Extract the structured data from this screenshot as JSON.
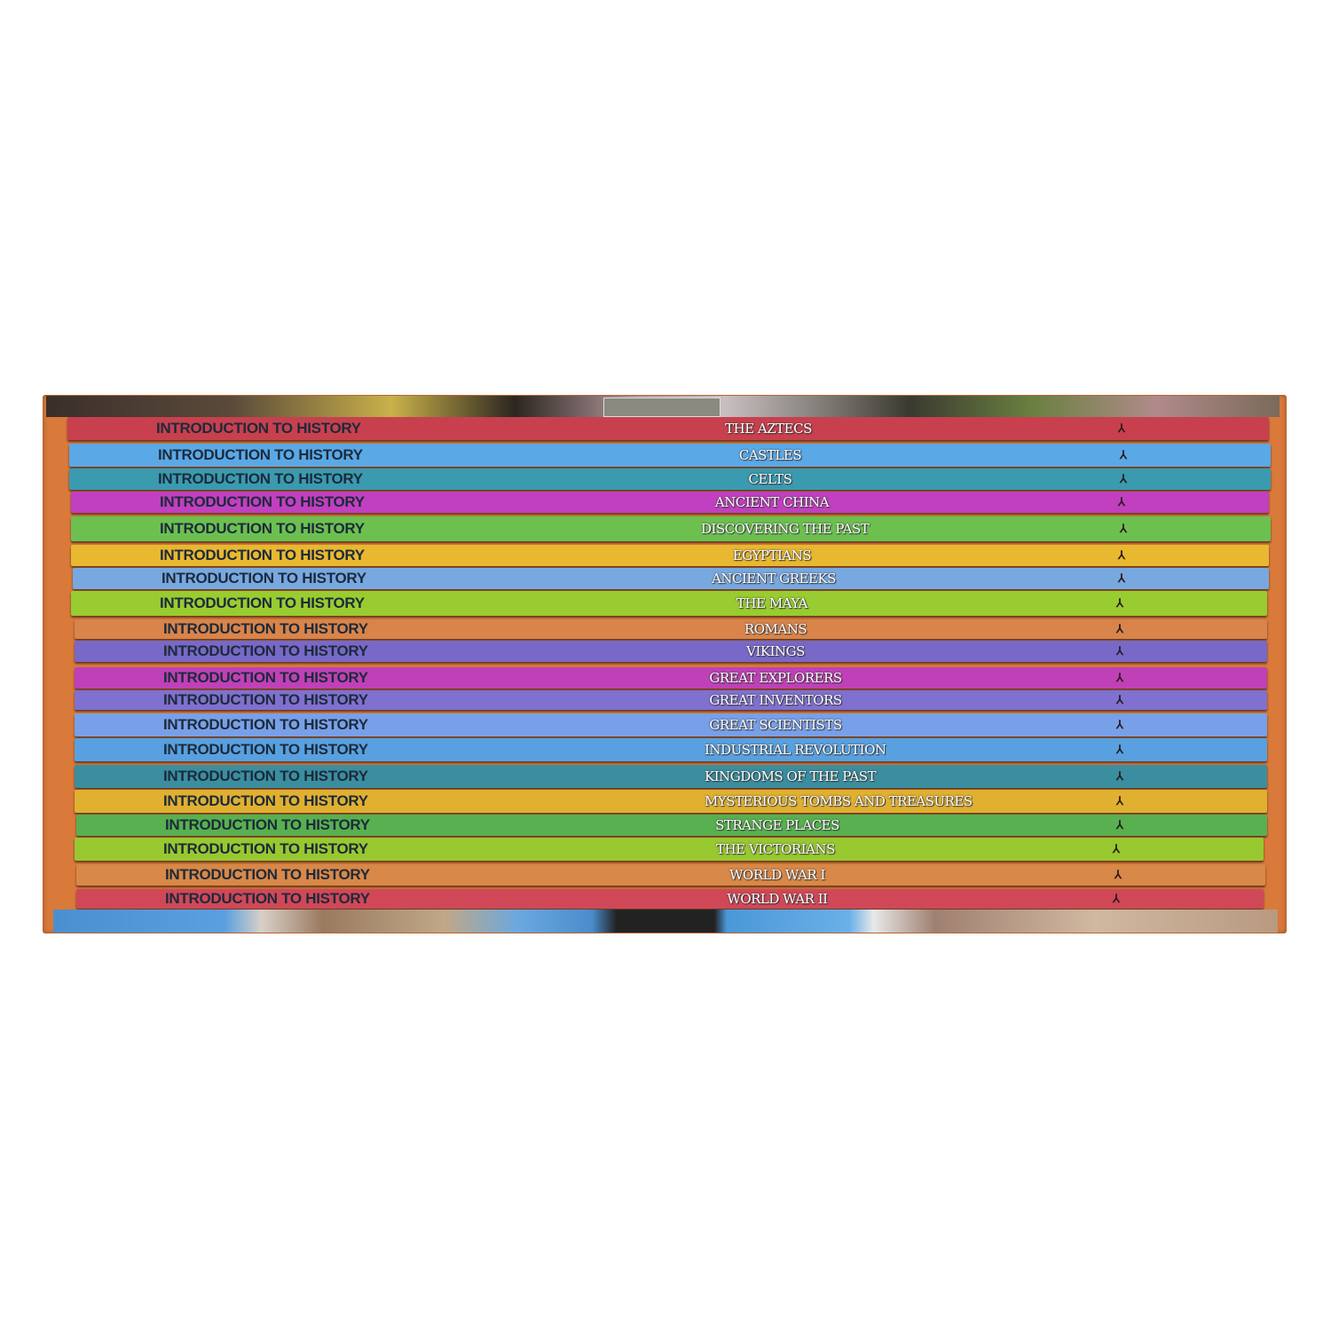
{
  "product": {
    "series_label": "INTRODUCTION TO HISTORY",
    "publisher_logo_icon": "publisher-logo-icon",
    "box_color": "#d9793a",
    "books": [
      {
        "title": "THE AZTECS",
        "color": "#c8404e"
      },
      {
        "title": "CASTLES",
        "color": "#5aa8e6"
      },
      {
        "title": "CELTS",
        "color": "#3a9ab0"
      },
      {
        "title": "ANCIENT CHINA",
        "color": "#c040c0"
      },
      {
        "title": "DISCOVERING THE PAST",
        "color": "#6cc050"
      },
      {
        "title": "EGYPTIANS",
        "color": "#e8b830"
      },
      {
        "title": "ANCIENT GREEKS",
        "color": "#78a8e0"
      },
      {
        "title": "THE MAYA",
        "color": "#98cc30"
      },
      {
        "title": "ROMANS",
        "color": "#d8844a"
      },
      {
        "title": "VIKINGS",
        "color": "#7868c8"
      },
      {
        "title": "GREAT EXPLORERS",
        "color": "#c040b8"
      },
      {
        "title": "GREAT INVENTORS",
        "color": "#8070d0"
      },
      {
        "title": "GREAT SCIENTISTS",
        "color": "#78a0e8"
      },
      {
        "title": "INDUSTRIAL REVOLUTION",
        "color": "#58a0e0"
      },
      {
        "title": "KINGDOMS OF THE PAST",
        "color": "#3a8ea0"
      },
      {
        "title": "MYSTERIOUS TOMBS AND TREASURES",
        "color": "#e0b030"
      },
      {
        "title": "STRANGE PLACES",
        "color": "#58b050"
      },
      {
        "title": "THE VICTORIANS",
        "color": "#98c830"
      },
      {
        "title": "WORLD WAR I",
        "color": "#d88848"
      },
      {
        "title": "WORLD WAR II",
        "color": "#d04858"
      }
    ]
  }
}
